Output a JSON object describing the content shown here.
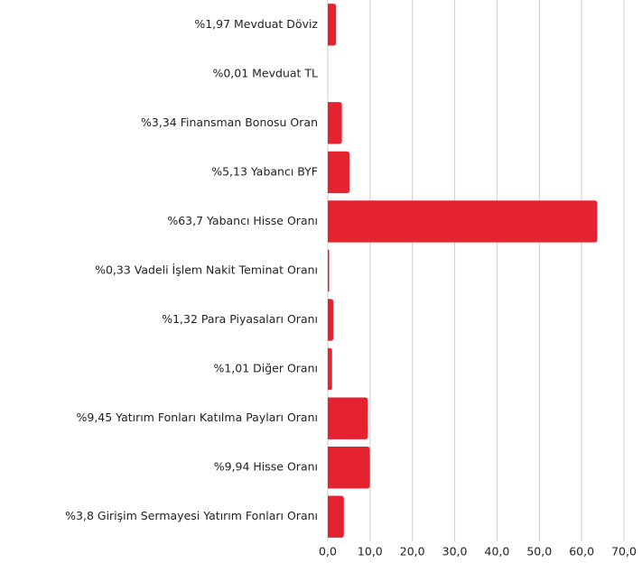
{
  "chart_data": {
    "type": "barh",
    "categories": [
      "%1,97 Mevduat Döviz",
      "%0,01 Mevduat TL",
      "%3,34 Finansman Bonosu Oran",
      "%5,13 Yabancı BYF",
      "%63,7 Yabancı Hisse Oranı",
      "%0,33 Vadeli İşlem Nakit Teminat Oranı",
      "%1,32 Para Piyasaları Oranı",
      "%1,01 Diğer Oranı",
      "%9,45 Yatırım Fonları Katılma Payları Oranı",
      "%9,94 Hisse Oranı",
      "%3,8 Girişim Sermayesi Yatırım Fonları Oranı"
    ],
    "values": [
      1.97,
      0.01,
      3.34,
      5.13,
      63.7,
      0.33,
      1.32,
      1.01,
      9.45,
      9.94,
      3.8
    ],
    "color": "#e5222f",
    "xlim": [
      0,
      70
    ],
    "xticks": [
      {
        "value": 0,
        "label": "0,0"
      },
      {
        "value": 10,
        "label": "10,0"
      },
      {
        "value": 20,
        "label": "20,0"
      },
      {
        "value": 30,
        "label": "30,0"
      },
      {
        "value": 40,
        "label": "40,0"
      },
      {
        "value": 50,
        "label": "50,0"
      },
      {
        "value": 60,
        "label": "60,0"
      },
      {
        "value": 70,
        "label": "70,0"
      }
    ],
    "grid": true
  }
}
